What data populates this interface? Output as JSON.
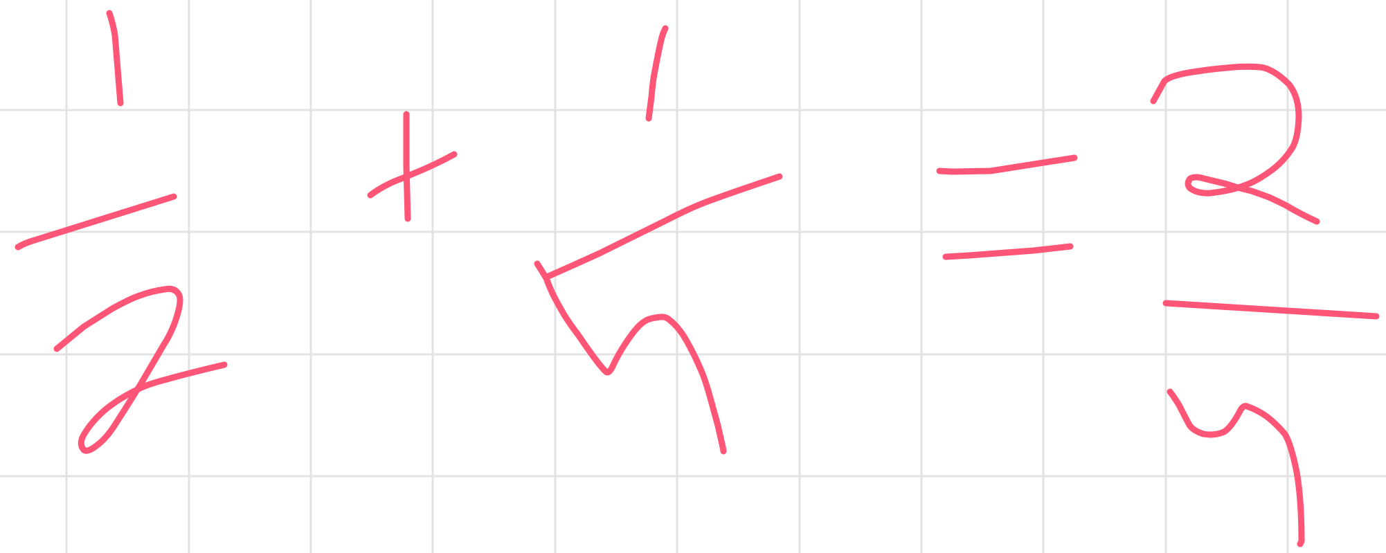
{
  "canvas": {
    "background_color": "#ffffff",
    "grid_color": "#e3e3e3",
    "ink_color": "#ff5577"
  },
  "expression": {
    "glyphs": [
      {
        "name": "numerator-1",
        "char": "1"
      },
      {
        "name": "fraction-bar-left",
        "char": "—"
      },
      {
        "name": "denominator-2",
        "char": "2"
      },
      {
        "name": "plus-sign",
        "char": "+"
      },
      {
        "name": "numerator-1-second",
        "char": "1"
      },
      {
        "name": "fraction-bar-middle",
        "char": "—"
      },
      {
        "name": "denominator-sqrt-5",
        "char": "√5"
      },
      {
        "name": "equals-sign",
        "char": "="
      },
      {
        "name": "numerator-2",
        "char": "2"
      },
      {
        "name": "fraction-bar-right",
        "char": "—"
      },
      {
        "name": "denominator-sqrt-right",
        "char": "√"
      }
    ]
  }
}
